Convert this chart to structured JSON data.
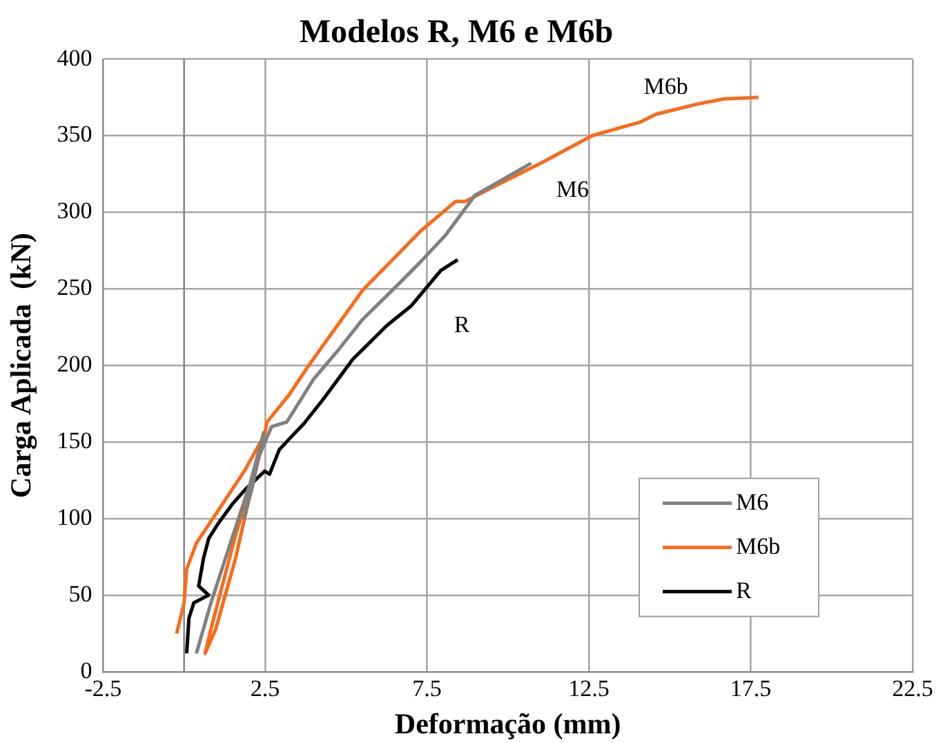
{
  "chart_data": {
    "type": "line",
    "title": "Modelos R, M6 e M6b",
    "xlabel": "Deformação (mm)",
    "ylabel": "Carga Aplicada  (kN)",
    "xlim": [
      -2.5,
      22.5
    ],
    "xticks": [
      -2.5,
      2.5,
      7.5,
      12.5,
      17.5,
      22.5
    ],
    "ylim": [
      0,
      400
    ],
    "yticks": [
      0,
      50,
      100,
      150,
      200,
      250,
      300,
      350,
      400
    ],
    "grid": true,
    "legend": "bottom right",
    "marker": "none",
    "line_style": "solid",
    "ref_lines": [
      {
        "axis": "x",
        "value": 0,
        "color": "#868686"
      }
    ],
    "series": [
      {
        "name": "M6",
        "color": "#808080",
        "x": [
          0.38,
          0.83,
          1.43,
          2.04,
          2.41,
          2.45,
          2.1,
          1.85,
          2.3,
          2.7,
          3.17,
          4.0,
          4.76,
          5.51,
          6.57,
          7.32,
          8.07,
          8.53,
          8.98,
          9.89,
          10.72
        ],
        "values": [
          12,
          45,
          84,
          123,
          152,
          156,
          120,
          100,
          140,
          160,
          163,
          191,
          210,
          230,
          252,
          268,
          285,
          298,
          311,
          322,
          332
        ]
      },
      {
        "name": "M6b",
        "color": "#f96b1a",
        "x": [
          -0.23,
          0,
          0.08,
          0.38,
          0.98,
          1.89,
          2.49,
          2.2,
          1.6,
          0.83,
          0.65,
          0.98,
          1.59,
          2.04,
          2.41,
          2.49,
          2.56,
          3.25,
          3.85,
          5.51,
          7.32,
          8.38,
          8.68,
          9.13,
          11.1,
          12.6,
          14.1,
          14.57,
          15.93,
          16.68,
          17.74
        ],
        "values": [
          25,
          45,
          67,
          84,
          103,
          132,
          155,
          130,
          90,
          28,
          12,
          28,
          74,
          116,
          150,
          155,
          163,
          181,
          200,
          249,
          288,
          307,
          307,
          312,
          333,
          350,
          359,
          364,
          371,
          374,
          375
        ]
      },
      {
        "name": "R",
        "color": "#000000",
        "x": [
          0.08,
          0.15,
          0.3,
          0.76,
          0.45,
          0.6,
          0.76,
          1.06,
          1.51,
          1.89,
          2.49,
          2.64,
          2.94,
          3.25,
          3.7,
          4.3,
          5.21,
          6.26,
          7.02,
          7.93,
          8.45
        ],
        "values": [
          12,
          35,
          45,
          50,
          56,
          74,
          87,
          97,
          110,
          119,
          131,
          129,
          145,
          152,
          162,
          178,
          204,
          226,
          239,
          262,
          269
        ]
      }
    ]
  }
}
